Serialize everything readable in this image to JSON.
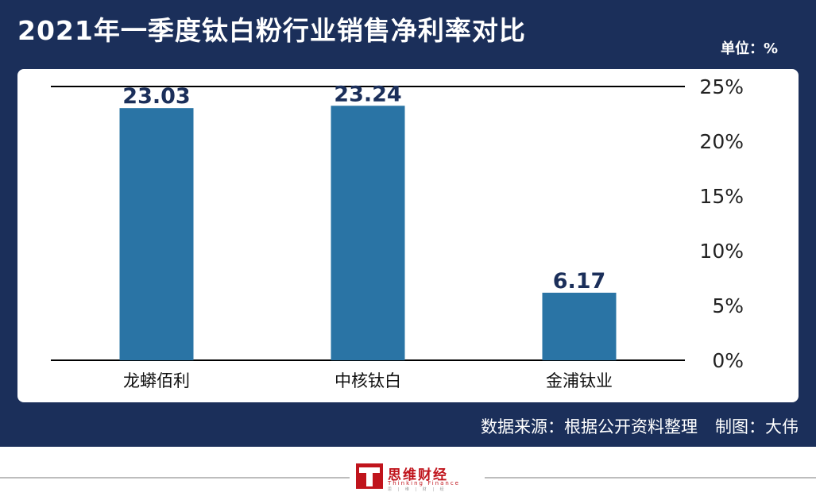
{
  "title": "2021年一季度钛白粉行业销售净利率对比",
  "unit_label": "单位：%",
  "source_text": "数据来源：根据公开资料整理",
  "credit_text": "制图：大伟",
  "logo": {
    "name_cn": "思维财经",
    "name_en": "Thinking Finance",
    "tagline": "思 | 维 | 财 | 经"
  },
  "colors": {
    "frame": "#1b2f5a",
    "bar": "#2a74a5",
    "value_label": "#1b2f5a",
    "logo_red": "#c0141c"
  },
  "chart_data": {
    "type": "bar",
    "categories": [
      "龙蟒佰利",
      "中核钛白",
      "金浦钛业"
    ],
    "values": [
      23.03,
      23.24,
      6.17
    ],
    "data_labels": [
      "23.03",
      "23.24",
      "6.17"
    ],
    "ylim": [
      0,
      25
    ],
    "yticks": [
      0,
      5,
      10,
      15,
      20,
      25
    ],
    "ytick_labels": [
      "0%",
      "5%",
      "10%",
      "15%",
      "20%",
      "25%"
    ],
    "y_axis_side": "right",
    "grid": false,
    "legend": "none"
  }
}
